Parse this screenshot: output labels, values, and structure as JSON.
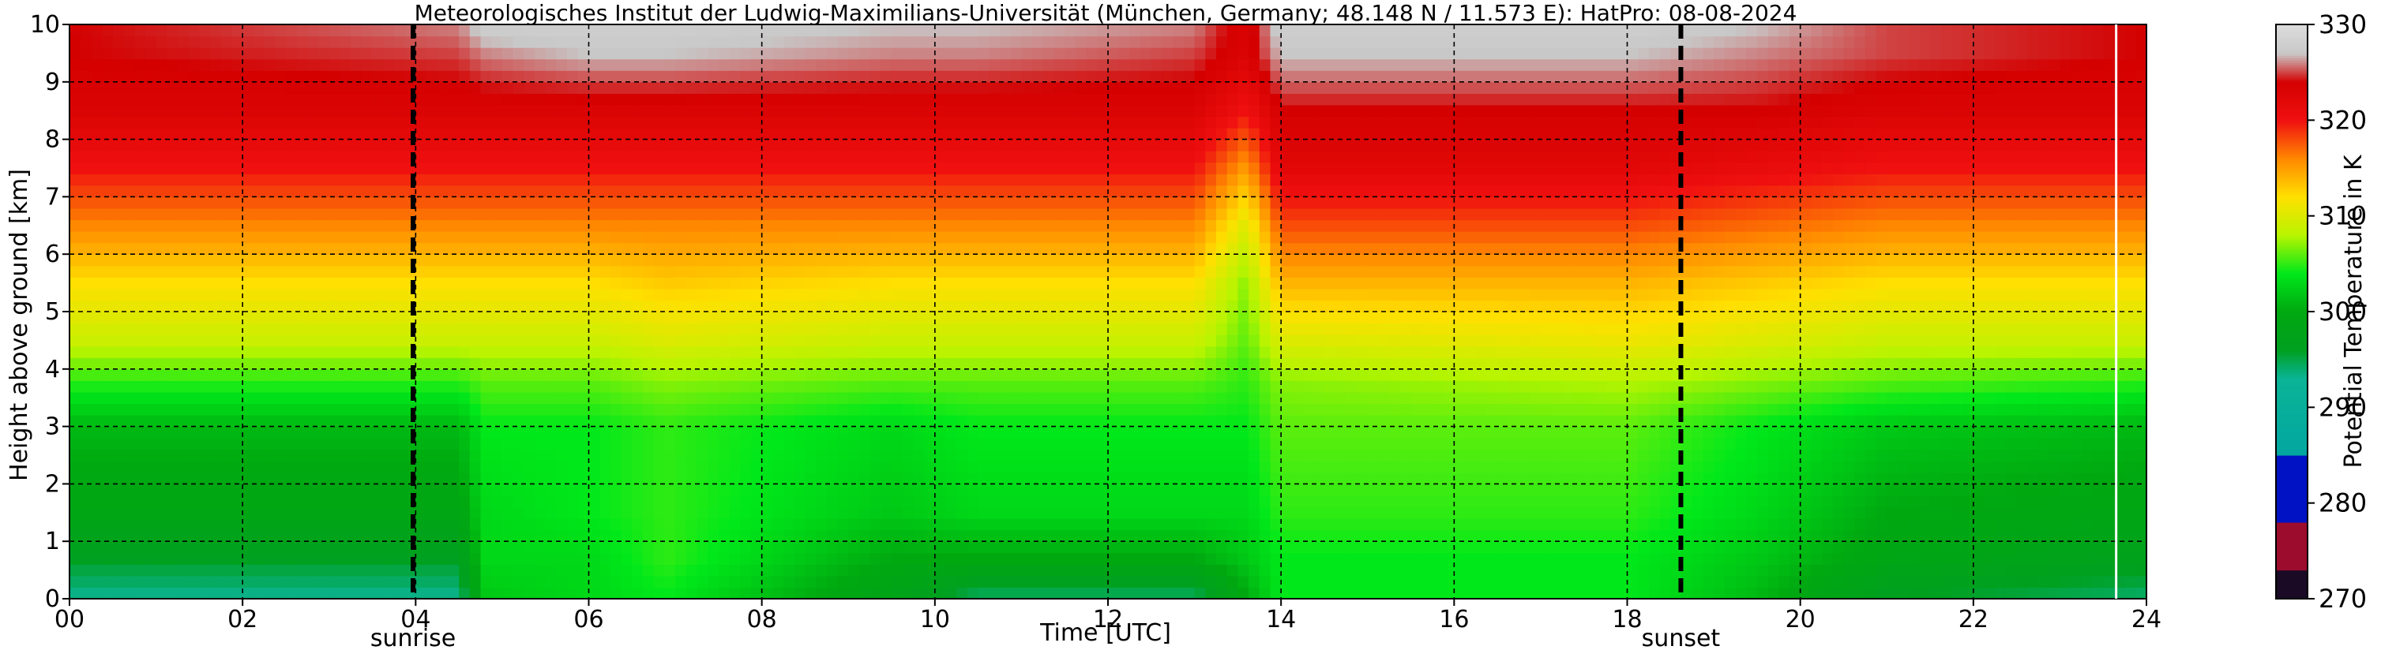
{
  "chart_data": {
    "type": "heatmap",
    "title": "Meteorologisches Institut der Ludwig-Maximilians-Universität (München, Germany; 48.148 N / 11.573 E):    HatPro: 08-08-2024",
    "xlabel": "Time [UTC]",
    "ylabel": "Height above ground [km]",
    "colorbar_label": "Potential Temperature in K",
    "xlim": [
      0,
      24
    ],
    "ylim": [
      0,
      10
    ],
    "clim": [
      270,
      330
    ],
    "x_ticks": [
      "00",
      "02",
      "04",
      "06",
      "08",
      "10",
      "12",
      "14",
      "16",
      "18",
      "20",
      "22",
      "24"
    ],
    "y_ticks": [
      "0",
      "1",
      "2",
      "3",
      "4",
      "5",
      "6",
      "7",
      "8",
      "9",
      "10"
    ],
    "colorbar_ticks": [
      "270",
      "280",
      "290",
      "300",
      "310",
      "320",
      "330"
    ],
    "grid": true,
    "markers": [
      {
        "label": "sunrise",
        "time": 3.97
      },
      {
        "label": "sunset",
        "time": 18.62
      }
    ],
    "colorscale": [
      {
        "value": 270,
        "color": "#1a0a26"
      },
      {
        "value": 273,
        "color": "#1a0a26"
      },
      {
        "value": 273,
        "color": "#9c0c2c"
      },
      {
        "value": 278,
        "color": "#9c0c2c"
      },
      {
        "value": 278,
        "color": "#0012c4"
      },
      {
        "value": 285,
        "color": "#0012c4"
      },
      {
        "value": 285,
        "color": "#03a6a0"
      },
      {
        "value": 293,
        "color": "#0ab496"
      },
      {
        "value": 296,
        "color": "#00a020"
      },
      {
        "value": 300,
        "color": "#00a810"
      },
      {
        "value": 304,
        "color": "#00e81a"
      },
      {
        "value": 308,
        "color": "#b8f400"
      },
      {
        "value": 312,
        "color": "#ffe000"
      },
      {
        "value": 316,
        "color": "#ff8800"
      },
      {
        "value": 320,
        "color": "#f01010"
      },
      {
        "value": 324,
        "color": "#d40000"
      },
      {
        "value": 327,
        "color": "#c8c8c8"
      },
      {
        "value": 330,
        "color": "#dcdcdc"
      }
    ],
    "profiles": [
      {
        "time": 0.0,
        "heights_km": [
          0,
          0.7,
          1.5,
          3.0,
          3.8,
          4.5,
          5.5,
          6.5,
          7.5,
          8.5,
          9.5,
          10
        ],
        "theta_K": [
          293,
          296,
          299,
          301,
          305,
          309,
          312,
          316,
          320,
          323,
          324,
          324
        ]
      },
      {
        "time": 4.5,
        "heights_km": [
          0,
          0.7,
          1.5,
          3.0,
          3.8,
          4.5,
          5.5,
          6.5,
          7.5,
          8.5,
          9.5,
          10
        ],
        "theta_K": [
          293,
          296,
          299,
          301,
          305,
          309,
          312,
          316,
          320,
          323,
          325,
          326
        ]
      },
      {
        "time": 4.8,
        "heights_km": [
          0,
          0.7,
          1.5,
          3.0,
          3.8,
          4.5,
          5.5,
          6.5,
          7.5,
          8.5,
          9.5,
          10
        ],
        "theta_K": [
          302,
          303,
          303,
          304,
          306,
          309,
          312,
          316,
          320,
          323,
          326,
          328
        ]
      },
      {
        "time": 6.0,
        "heights_km": [
          0,
          0.7,
          1.5,
          3.0,
          3.8,
          4.5,
          5.5,
          6.5,
          7.5,
          8.5,
          9.5,
          10
        ],
        "theta_K": [
          303,
          303,
          304,
          304,
          306,
          309,
          312,
          316,
          320,
          323,
          327,
          328
        ]
      },
      {
        "time": 6.9,
        "heights_km": [
          0,
          0.7,
          1.5,
          3.0,
          3.8,
          4.5,
          5.5,
          6.5,
          7.5,
          8.5,
          9.5,
          10
        ],
        "theta_K": [
          304,
          305,
          305,
          305,
          307,
          310,
          313,
          316,
          320,
          323,
          327,
          328
        ]
      },
      {
        "time": 9.5,
        "heights_km": [
          0,
          0.7,
          1.5,
          3.0,
          3.8,
          4.5,
          5.5,
          6.5,
          7.5,
          8.5,
          9.5,
          10
        ],
        "theta_K": [
          298,
          300,
          302,
          303,
          306,
          309,
          312,
          316,
          320,
          323,
          326,
          327
        ]
      },
      {
        "time": 10.5,
        "heights_km": [
          0,
          0.7,
          1.5,
          3.0,
          3.8,
          4.5,
          5.5,
          6.5,
          7.5,
          8.5,
          9.5,
          10
        ],
        "theta_K": [
          294,
          300,
          303,
          304,
          306,
          309,
          312,
          316,
          320,
          323,
          326,
          327
        ]
      },
      {
        "time": 13.0,
        "heights_km": [
          0,
          0.7,
          1.5,
          3.0,
          3.8,
          4.5,
          5.5,
          6.5,
          7.5,
          8.5,
          9.5,
          10
        ],
        "theta_K": [
          294,
          300,
          303,
          304,
          306,
          309,
          312,
          316,
          320,
          323,
          325,
          326
        ]
      },
      {
        "time": 13.6,
        "heights_km": [
          0,
          0.7,
          1.5,
          3.0,
          3.8,
          4.5,
          5.5,
          6.5,
          7.5,
          8.5,
          9.5,
          10
        ],
        "theta_K": [
          300,
          302,
          303,
          304,
          305,
          306,
          307,
          310,
          315,
          320,
          323,
          323
        ]
      },
      {
        "time": 14.0,
        "heights_km": [
          0,
          0.7,
          1.5,
          3.0,
          3.8,
          4.5,
          5.5,
          6.5,
          7.5,
          8.5,
          9.5,
          10
        ],
        "theta_K": [
          304,
          304,
          305,
          306,
          307,
          310,
          314,
          318,
          322,
          324,
          327,
          328
        ]
      },
      {
        "time": 18.0,
        "heights_km": [
          0,
          0.7,
          1.5,
          3.0,
          3.8,
          4.5,
          5.5,
          6.5,
          7.5,
          8.5,
          9.5,
          10
        ],
        "theta_K": [
          304,
          304,
          305,
          306,
          308,
          311,
          314,
          318,
          322,
          324,
          327,
          328
        ]
      },
      {
        "time": 19.5,
        "heights_km": [
          0,
          0.7,
          1.5,
          3.0,
          3.8,
          4.5,
          5.5,
          6.5,
          7.5,
          8.5,
          9.5,
          10
        ],
        "theta_K": [
          301,
          302,
          303,
          304,
          307,
          310,
          313,
          317,
          321,
          324,
          326,
          327
        ]
      },
      {
        "time": 21.0,
        "heights_km": [
          0,
          0.7,
          1.5,
          3.0,
          3.8,
          4.5,
          5.5,
          6.5,
          7.5,
          8.5,
          9.5,
          10
        ],
        "theta_K": [
          296,
          299,
          300,
          302,
          306,
          309,
          312,
          316,
          320,
          323,
          325,
          325
        ]
      },
      {
        "time": 24.0,
        "heights_km": [
          0,
          0.7,
          1.5,
          3.0,
          3.8,
          4.5,
          5.5,
          6.5,
          7.5,
          8.5,
          9.5,
          10
        ],
        "theta_K": [
          294,
          297,
          299,
          301,
          305,
          309,
          312,
          316,
          320,
          323,
          324,
          324
        ]
      }
    ]
  }
}
